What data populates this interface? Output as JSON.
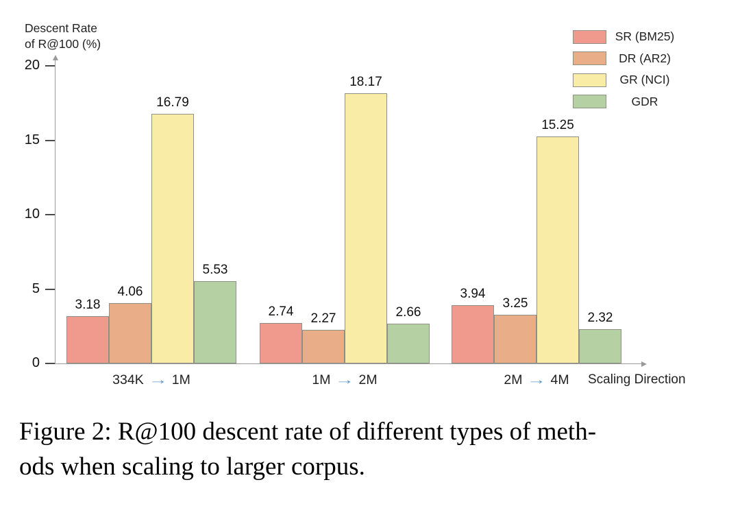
{
  "chart_data": {
    "type": "bar",
    "title": "",
    "ylabel_lines": [
      "Descent Rate",
      "of R@100 (%)"
    ],
    "xlabel": "Scaling Direction",
    "categories": [
      "334K → 1M",
      "1M → 2M",
      "2M → 4M"
    ],
    "series": [
      {
        "name": "SR (BM25)",
        "color": "#f09a8e",
        "values": [
          3.18,
          2.74,
          3.94
        ]
      },
      {
        "name": "DR (AR2)",
        "color": "#e9ae87",
        "values": [
          4.06,
          2.27,
          3.25
        ]
      },
      {
        "name": "GR (NCI)",
        "color": "#f9eca6",
        "values": [
          16.79,
          18.17,
          15.25
        ]
      },
      {
        "name": "GDR",
        "color": "#b5d0a2",
        "values": [
          5.53,
          2.66,
          2.32
        ]
      }
    ],
    "yticks": [
      0,
      5,
      10,
      15,
      20
    ],
    "ylim": [
      0,
      20
    ],
    "grid": false,
    "value_labels": true,
    "legend_position": "top-right",
    "arrow_color": "#5e96cc",
    "axis_color": "#9a9a9a",
    "text_color": "#1c1c1c"
  },
  "caption": {
    "lines": [
      "Figure 2: R@100 descent rate of different types of meth-",
      "ods when scaling to larger corpus."
    ]
  }
}
